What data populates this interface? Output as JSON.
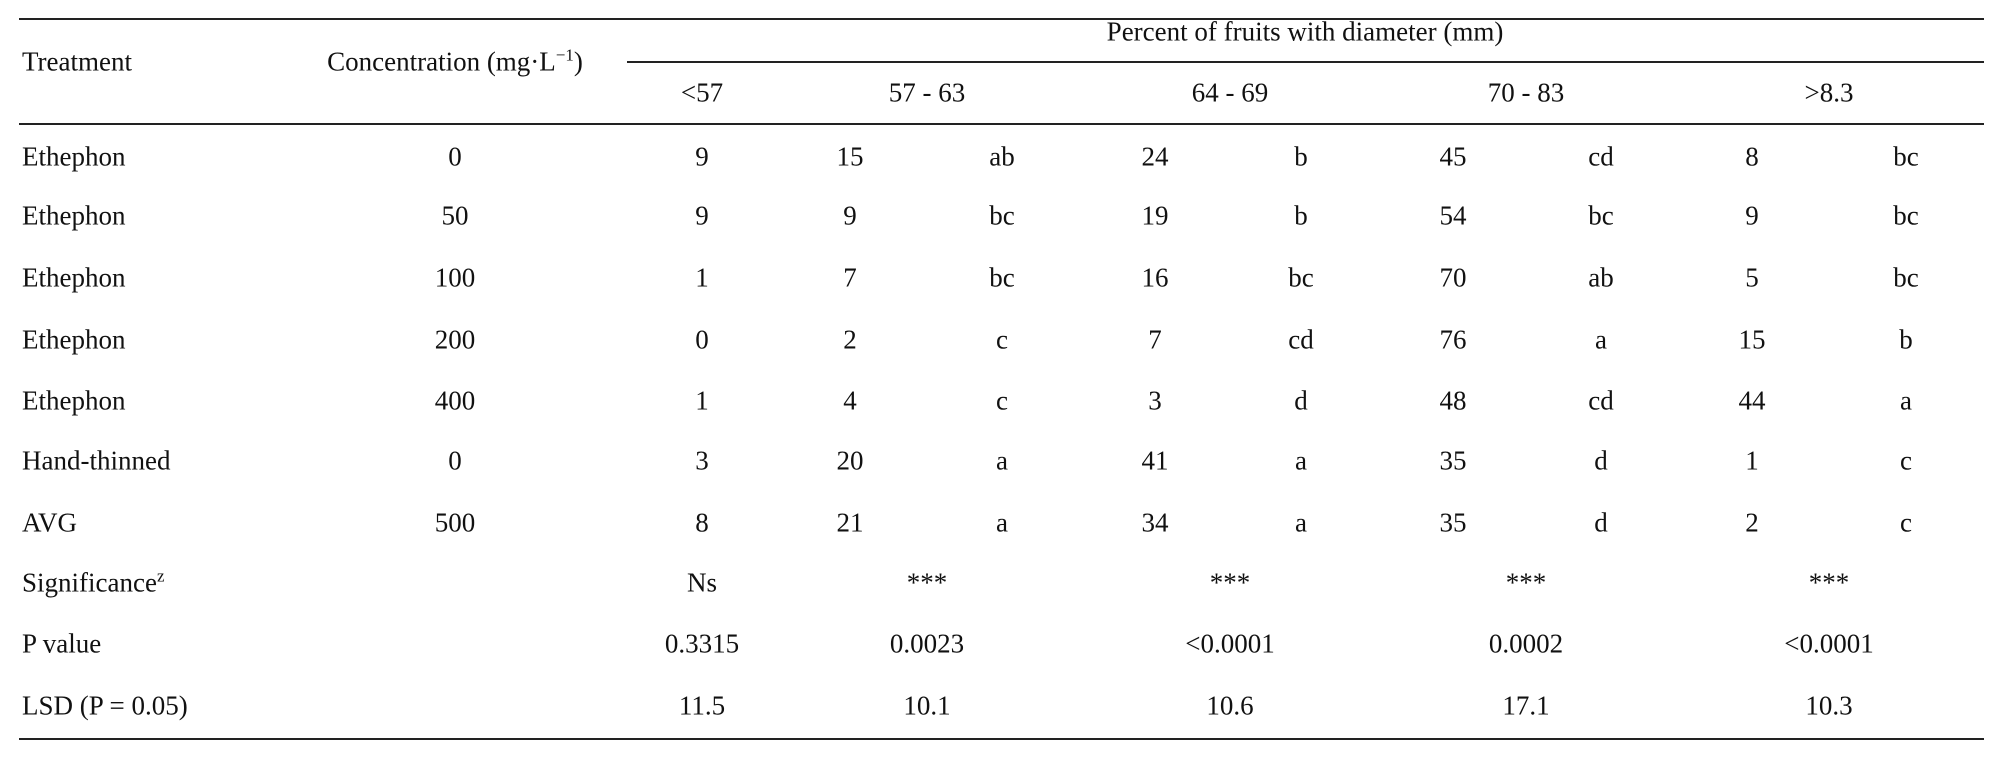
{
  "header": {
    "treatment": "Treatment",
    "concentration": {
      "text": "Concentration (mg·L",
      "sup": "−1",
      "end": ")"
    },
    "group": "Percent of fruits with diameter (mm)",
    "ranges": [
      "<57",
      "57 - 63",
      "64 - 69",
      "70 - 83",
      ">8.3"
    ]
  },
  "rows": [
    {
      "treatment": "Ethephon",
      "concentration": 0,
      "cells": [
        [
          9
        ],
        [
          15,
          "ab"
        ],
        [
          24,
          "b"
        ],
        [
          45,
          "cd"
        ],
        [
          8,
          "bc"
        ]
      ]
    },
    {
      "treatment": "Ethephon",
      "concentration": 50,
      "cells": [
        [
          9
        ],
        [
          9,
          "bc"
        ],
        [
          19,
          "b"
        ],
        [
          54,
          "bc"
        ],
        [
          9,
          "bc"
        ]
      ]
    },
    {
      "treatment": "Ethephon",
      "concentration": 100,
      "cells": [
        [
          1
        ],
        [
          7,
          "bc"
        ],
        [
          16,
          "bc"
        ],
        [
          70,
          "ab"
        ],
        [
          5,
          "bc"
        ]
      ]
    },
    {
      "treatment": "Ethephon",
      "concentration": 200,
      "cells": [
        [
          0
        ],
        [
          2,
          "c"
        ],
        [
          7,
          "cd"
        ],
        [
          76,
          "a"
        ],
        [
          15,
          "b"
        ]
      ]
    },
    {
      "treatment": "Ethephon",
      "concentration": 400,
      "cells": [
        [
          1
        ],
        [
          4,
          "c"
        ],
        [
          3,
          "d"
        ],
        [
          48,
          "cd"
        ],
        [
          44,
          "a"
        ]
      ]
    },
    {
      "treatment": "Hand-thinned",
      "concentration": 0,
      "cells": [
        [
          3
        ],
        [
          20,
          "a"
        ],
        [
          41,
          "a"
        ],
        [
          35,
          "d"
        ],
        [
          1,
          "c"
        ]
      ]
    },
    {
      "treatment": "AVG",
      "concentration": 500,
      "cells": [
        [
          8
        ],
        [
          21,
          "a"
        ],
        [
          34,
          "a"
        ],
        [
          35,
          "d"
        ],
        [
          2,
          "c"
        ]
      ]
    }
  ],
  "footer": [
    {
      "label": "Significance",
      "sup": "z",
      "values": [
        "Ns",
        "***",
        "***",
        "***",
        "***"
      ]
    },
    {
      "label": "P value",
      "values": [
        0.3315,
        0.0023,
        "<0.0001",
        0.0002,
        "<0.0001"
      ]
    },
    {
      "label": "LSD (P = 0.05)",
      "values": [
        11.5,
        10.1,
        10.6,
        17.1,
        10.3
      ]
    }
  ]
}
